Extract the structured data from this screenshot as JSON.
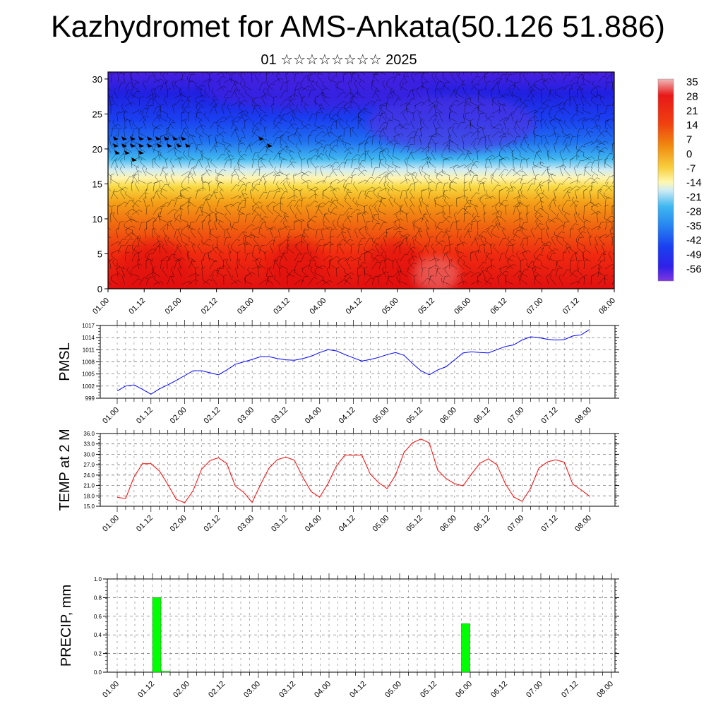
{
  "title": "Kazhydromet for AMS-Ankata(50.126 51.886)",
  "subtitle": "01 ☆☆☆☆☆☆☆☆ 2025",
  "time_labels": [
    "01.00",
    "01.12",
    "02.00",
    "02.12",
    "03.00",
    "03.12",
    "04.00",
    "04.12",
    "05.00",
    "05.12",
    "06.00",
    "06.12",
    "07.00",
    "07.12",
    "08.00"
  ],
  "chart_data": [
    {
      "type": "heatmap",
      "name": "cross-section",
      "y_ticks": [
        0,
        5,
        10,
        15,
        20,
        25,
        30
      ],
      "ylim": [
        0,
        31
      ],
      "x_ticks": [
        "01.00",
        "01.12",
        "02.00",
        "02.12",
        "03.00",
        "03.12",
        "04.00",
        "04.12",
        "05.00",
        "05.12",
        "06.00",
        "06.12",
        "07.00",
        "07.12",
        "08.00"
      ],
      "colorbar_labels": [
        "35",
        "28",
        "21",
        "14",
        "7",
        "0",
        "-7",
        "-14",
        "-21",
        "-28",
        "-35",
        "-42",
        "-49",
        "-56"
      ],
      "colorbar_colors": [
        "#f0b0b0",
        "#e81818",
        "#f04010",
        "#f07a10",
        "#f4a818",
        "#f8d840",
        "#fff6a0",
        "#cce8f0",
        "#40b8f0",
        "#2888f0",
        "#1a50f0",
        "#2020e8",
        "#5028e8",
        "#8038e0"
      ]
    },
    {
      "type": "line",
      "ylabel": "PMSL",
      "x": [
        "01.00",
        "01.03",
        "01.06",
        "01.09",
        "01.12",
        "01.15",
        "01.18",
        "01.21",
        "02.00",
        "02.03",
        "02.06",
        "02.09",
        "02.12",
        "02.15",
        "02.18",
        "02.21",
        "03.00",
        "03.03",
        "03.06",
        "03.09",
        "03.12",
        "03.15",
        "03.18",
        "03.21",
        "04.00",
        "04.03",
        "04.06",
        "04.09",
        "04.12",
        "04.15",
        "04.18",
        "04.21",
        "05.00",
        "05.03",
        "05.06",
        "05.09",
        "05.12",
        "05.15",
        "05.18",
        "05.21",
        "06.00",
        "06.03",
        "06.06",
        "06.09",
        "06.12",
        "06.15",
        "06.18",
        "06.21",
        "07.00",
        "07.03",
        "07.06",
        "07.09",
        "07.12",
        "07.15",
        "07.18",
        "07.21",
        "08.00"
      ],
      "values": [
        1000.8,
        1002.0,
        1002.3,
        1001.2,
        1000.0,
        1001.3,
        1002.3,
        1003.4,
        1004.6,
        1005.8,
        1005.8,
        1005.3,
        1004.8,
        1006.0,
        1007.4,
        1008.0,
        1008.6,
        1009.3,
        1009.3,
        1008.8,
        1008.5,
        1008.4,
        1008.8,
        1009.4,
        1010.3,
        1011.0,
        1010.7,
        1009.8,
        1009.0,
        1008.2,
        1008.6,
        1009.1,
        1009.8,
        1010.3,
        1009.6,
        1007.6,
        1005.8,
        1004.8,
        1006.0,
        1006.8,
        1008.5,
        1010.2,
        1010.5,
        1010.3,
        1010.2,
        1011.0,
        1011.8,
        1012.2,
        1013.4,
        1014.2,
        1014.0,
        1013.6,
        1013.4,
        1013.5,
        1014.4,
        1014.7,
        1016.0
      ],
      "ylim": [
        999,
        1017
      ],
      "y_ticks": [
        999,
        1002,
        1005,
        1008,
        1011,
        1014,
        1017
      ],
      "color": "#0000ff"
    },
    {
      "type": "line",
      "ylabel": "TEMP at 2 M",
      "x": [
        "01.00",
        "01.03",
        "01.06",
        "01.09",
        "01.12",
        "01.15",
        "01.18",
        "01.21",
        "02.00",
        "02.03",
        "02.06",
        "02.09",
        "02.12",
        "02.15",
        "02.18",
        "02.21",
        "03.00",
        "03.03",
        "03.06",
        "03.09",
        "03.12",
        "03.15",
        "03.18",
        "03.21",
        "04.00",
        "04.03",
        "04.06",
        "04.09",
        "04.12",
        "04.15",
        "04.18",
        "04.21",
        "05.00",
        "05.03",
        "05.06",
        "05.09",
        "05.12",
        "05.15",
        "05.18",
        "05.21",
        "06.00",
        "06.03",
        "06.06",
        "06.09",
        "06.12",
        "06.15",
        "06.18",
        "06.21",
        "07.00",
        "07.03",
        "07.06",
        "07.09",
        "07.12",
        "07.15",
        "07.18",
        "07.21",
        "08.00"
      ],
      "values": [
        17.6,
        17.2,
        23.5,
        27.3,
        27.3,
        25.2,
        21.3,
        17.0,
        16.0,
        19.5,
        25.7,
        28.2,
        29.0,
        27.3,
        20.8,
        19.0,
        16.1,
        21.3,
        26.0,
        28.5,
        29.2,
        28.3,
        23.4,
        19.2,
        17.6,
        21.6,
        26.7,
        29.8,
        29.7,
        29.8,
        24.3,
        21.8,
        20.1,
        24.0,
        30.5,
        33.3,
        34.4,
        33.3,
        25.4,
        23.0,
        21.5,
        20.9,
        24.3,
        27.4,
        28.7,
        27.0,
        21.6,
        17.7,
        16.4,
        20.1,
        26.0,
        27.8,
        28.4,
        27.7,
        21.4,
        19.7,
        17.9
      ],
      "ylim": [
        15,
        36
      ],
      "y_ticks": [
        "15.0",
        "18.0",
        "21.0",
        "24.0",
        "27.0",
        "30.0",
        "33.0",
        "36.0"
      ],
      "color": "#ff0000"
    },
    {
      "type": "bar",
      "ylabel": "PRECIP, mm",
      "bars": [
        {
          "x": "01.12",
          "value": 0.8
        },
        {
          "x": "01.15",
          "value": 0.01
        },
        {
          "x": "05.21",
          "value": 0.52
        }
      ],
      "ylim": [
        0,
        1.0
      ],
      "y_ticks": [
        "0.0",
        "0.2",
        "0.4",
        "0.6",
        "0.8",
        "1.0"
      ],
      "color": "#00ff00"
    }
  ]
}
